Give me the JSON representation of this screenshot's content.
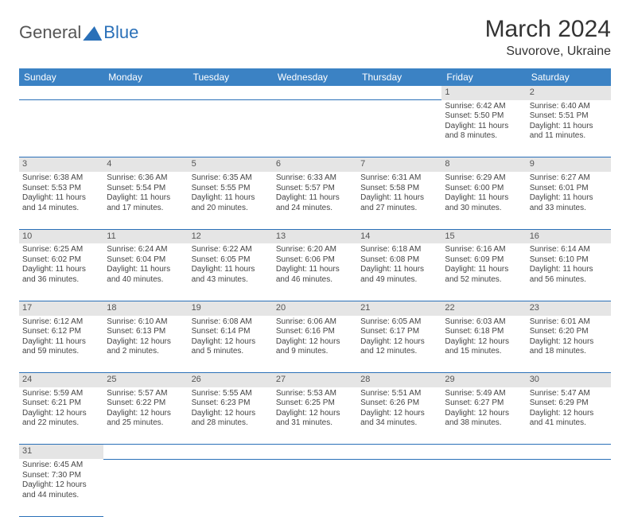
{
  "logo": {
    "part1": "General",
    "part2": "Blue"
  },
  "title": "March 2024",
  "location": "Suvorove, Ukraine",
  "columns": [
    "Sunday",
    "Monday",
    "Tuesday",
    "Wednesday",
    "Thursday",
    "Friday",
    "Saturday"
  ],
  "header_bg": "#3b82c4",
  "header_fg": "#ffffff",
  "daynum_bg": "#e5e5e5",
  "border_color": "#2a70b8",
  "days": {
    "1": {
      "sunrise": "6:42 AM",
      "sunset": "5:50 PM",
      "daylight": "11 hours and 8 minutes."
    },
    "2": {
      "sunrise": "6:40 AM",
      "sunset": "5:51 PM",
      "daylight": "11 hours and 11 minutes."
    },
    "3": {
      "sunrise": "6:38 AM",
      "sunset": "5:53 PM",
      "daylight": "11 hours and 14 minutes."
    },
    "4": {
      "sunrise": "6:36 AM",
      "sunset": "5:54 PM",
      "daylight": "11 hours and 17 minutes."
    },
    "5": {
      "sunrise": "6:35 AM",
      "sunset": "5:55 PM",
      "daylight": "11 hours and 20 minutes."
    },
    "6": {
      "sunrise": "6:33 AM",
      "sunset": "5:57 PM",
      "daylight": "11 hours and 24 minutes."
    },
    "7": {
      "sunrise": "6:31 AM",
      "sunset": "5:58 PM",
      "daylight": "11 hours and 27 minutes."
    },
    "8": {
      "sunrise": "6:29 AM",
      "sunset": "6:00 PM",
      "daylight": "11 hours and 30 minutes."
    },
    "9": {
      "sunrise": "6:27 AM",
      "sunset": "6:01 PM",
      "daylight": "11 hours and 33 minutes."
    },
    "10": {
      "sunrise": "6:25 AM",
      "sunset": "6:02 PM",
      "daylight": "11 hours and 36 minutes."
    },
    "11": {
      "sunrise": "6:24 AM",
      "sunset": "6:04 PM",
      "daylight": "11 hours and 40 minutes."
    },
    "12": {
      "sunrise": "6:22 AM",
      "sunset": "6:05 PM",
      "daylight": "11 hours and 43 minutes."
    },
    "13": {
      "sunrise": "6:20 AM",
      "sunset": "6:06 PM",
      "daylight": "11 hours and 46 minutes."
    },
    "14": {
      "sunrise": "6:18 AM",
      "sunset": "6:08 PM",
      "daylight": "11 hours and 49 minutes."
    },
    "15": {
      "sunrise": "6:16 AM",
      "sunset": "6:09 PM",
      "daylight": "11 hours and 52 minutes."
    },
    "16": {
      "sunrise": "6:14 AM",
      "sunset": "6:10 PM",
      "daylight": "11 hours and 56 minutes."
    },
    "17": {
      "sunrise": "6:12 AM",
      "sunset": "6:12 PM",
      "daylight": "11 hours and 59 minutes."
    },
    "18": {
      "sunrise": "6:10 AM",
      "sunset": "6:13 PM",
      "daylight": "12 hours and 2 minutes."
    },
    "19": {
      "sunrise": "6:08 AM",
      "sunset": "6:14 PM",
      "daylight": "12 hours and 5 minutes."
    },
    "20": {
      "sunrise": "6:06 AM",
      "sunset": "6:16 PM",
      "daylight": "12 hours and 9 minutes."
    },
    "21": {
      "sunrise": "6:05 AM",
      "sunset": "6:17 PM",
      "daylight": "12 hours and 12 minutes."
    },
    "22": {
      "sunrise": "6:03 AM",
      "sunset": "6:18 PM",
      "daylight": "12 hours and 15 minutes."
    },
    "23": {
      "sunrise": "6:01 AM",
      "sunset": "6:20 PM",
      "daylight": "12 hours and 18 minutes."
    },
    "24": {
      "sunrise": "5:59 AM",
      "sunset": "6:21 PM",
      "daylight": "12 hours and 22 minutes."
    },
    "25": {
      "sunrise": "5:57 AM",
      "sunset": "6:22 PM",
      "daylight": "12 hours and 25 minutes."
    },
    "26": {
      "sunrise": "5:55 AM",
      "sunset": "6:23 PM",
      "daylight": "12 hours and 28 minutes."
    },
    "27": {
      "sunrise": "5:53 AM",
      "sunset": "6:25 PM",
      "daylight": "12 hours and 31 minutes."
    },
    "28": {
      "sunrise": "5:51 AM",
      "sunset": "6:26 PM",
      "daylight": "12 hours and 34 minutes."
    },
    "29": {
      "sunrise": "5:49 AM",
      "sunset": "6:27 PM",
      "daylight": "12 hours and 38 minutes."
    },
    "30": {
      "sunrise": "5:47 AM",
      "sunset": "6:29 PM",
      "daylight": "12 hours and 41 minutes."
    },
    "31": {
      "sunrise": "6:45 AM",
      "sunset": "7:30 PM",
      "daylight": "12 hours and 44 minutes."
    }
  },
  "weeks": [
    [
      null,
      null,
      null,
      null,
      null,
      "1",
      "2"
    ],
    [
      "3",
      "4",
      "5",
      "6",
      "7",
      "8",
      "9"
    ],
    [
      "10",
      "11",
      "12",
      "13",
      "14",
      "15",
      "16"
    ],
    [
      "17",
      "18",
      "19",
      "20",
      "21",
      "22",
      "23"
    ],
    [
      "24",
      "25",
      "26",
      "27",
      "28",
      "29",
      "30"
    ],
    [
      "31",
      null,
      null,
      null,
      null,
      null,
      null
    ]
  ],
  "labels": {
    "sunrise": "Sunrise: ",
    "sunset": "Sunset: ",
    "daylight": "Daylight: "
  }
}
